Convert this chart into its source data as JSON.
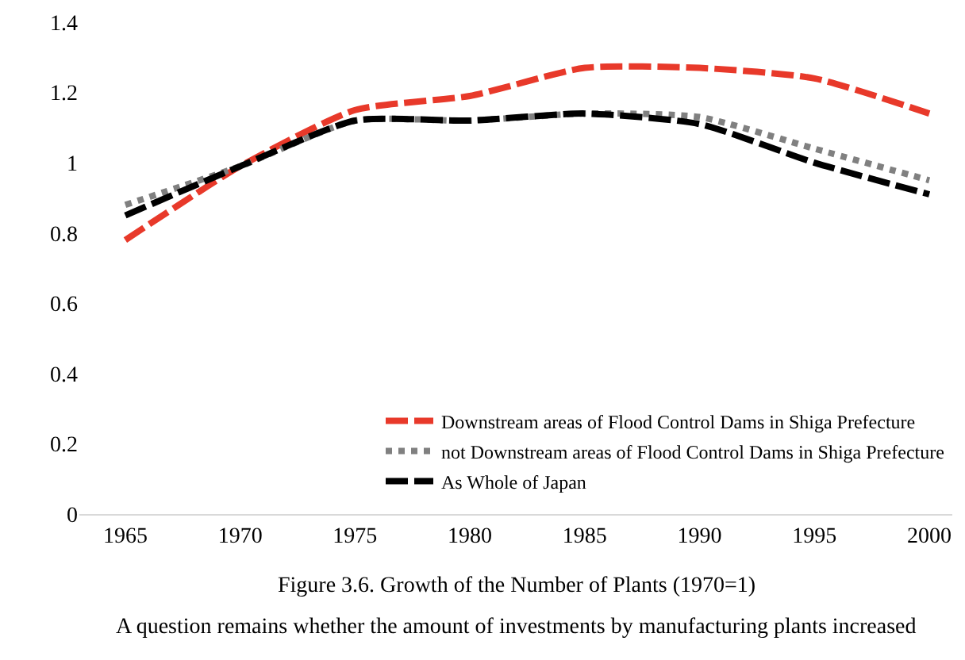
{
  "chart_data": {
    "type": "line",
    "title": "Figure 3.6. Growth of the Number of Plants (1970=1)",
    "annotations": [
      "A question remains whether the amount of investments by manufacturing plants increased"
    ],
    "x": [
      1965,
      1970,
      1975,
      1980,
      1985,
      1990,
      1995,
      2000
    ],
    "xlim": [
      1963,
      2001
    ],
    "xticks": [
      1965,
      1970,
      1975,
      1980,
      1985,
      1990,
      1995,
      2000
    ],
    "ylim": [
      0,
      1.4
    ],
    "yticks": [
      0,
      0.2,
      0.4,
      0.6,
      0.8,
      1,
      1.2,
      1.4
    ],
    "grid": false,
    "legend": "bottom right",
    "marker": "none",
    "series": [
      {
        "name": "Downstream areas of Flood Control Dams in Shiga Prefecture",
        "color": "#e8392a",
        "line_style": "dashed",
        "values": [
          0.78,
          0.99,
          1.15,
          1.19,
          1.27,
          1.27,
          1.24,
          1.14
        ]
      },
      {
        "name": "not Downstream areas of Flood Control Dams in Shiga Prefecture",
        "color": "#808080",
        "line_style": "dotted",
        "values": [
          0.88,
          0.99,
          1.12,
          1.12,
          1.14,
          1.13,
          1.04,
          0.95
        ]
      },
      {
        "name": "As Whole of Japan",
        "color": "#000000",
        "line_style": "dashed",
        "values": [
          0.85,
          0.99,
          1.12,
          1.12,
          1.14,
          1.11,
          1.0,
          0.91
        ]
      }
    ]
  }
}
